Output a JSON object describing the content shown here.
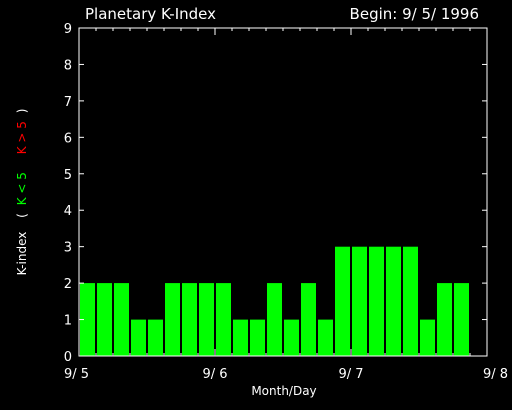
{
  "chart_data": {
    "type": "bar",
    "title": "Planetary K-Index",
    "begin_label": "Begin: 9/ 5/ 1996",
    "xlabel": "Month/Day",
    "ylabel": {
      "prefix": "K-index",
      "open": "(",
      "low": "K < 5",
      "high": "K > 5",
      "close": ")"
    },
    "ylim": [
      0,
      9
    ],
    "yticks": [
      "0",
      "1",
      "2",
      "3",
      "4",
      "5",
      "6",
      "7",
      "8",
      "9"
    ],
    "xlim": [
      0,
      24
    ],
    "xticks": [
      {
        "label": "9/ 5",
        "pos": 0
      },
      {
        "label": "9/ 6",
        "pos": 8
      },
      {
        "label": "9/ 7",
        "pos": 16
      },
      {
        "label": "9/ 8",
        "pos": 24
      }
    ],
    "values": [
      2,
      2,
      2,
      1,
      1,
      2,
      2,
      2,
      2,
      1,
      1,
      2,
      1,
      2,
      1,
      3,
      3,
      3,
      3,
      3,
      1,
      2,
      2
    ],
    "colors": {
      "background": "#000000",
      "axes": "#ffffff",
      "bar_low": "#00ff00",
      "bar_high": "#ff0000",
      "label_low": "#00ff00",
      "label_high": "#ff0000"
    },
    "threshold": 5
  }
}
